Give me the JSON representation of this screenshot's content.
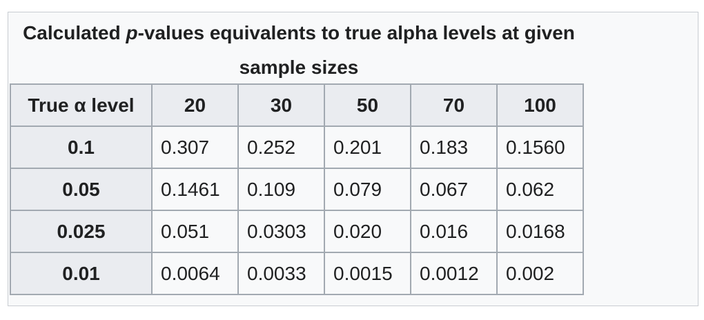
{
  "caption": {
    "part1": "Calculated ",
    "italic": "p",
    "part2": "-values equivalents to true alpha levels at given sample sizes"
  },
  "table": {
    "headers": [
      "True α level",
      "20",
      "30",
      "50",
      "70",
      "100"
    ],
    "rows": [
      {
        "label": "0.1",
        "values": [
          "0.307",
          "0.252",
          "0.201",
          "0.183",
          "0.1560"
        ]
      },
      {
        "label": "0.05",
        "values": [
          "0.1461",
          "0.109",
          "0.079",
          "0.067",
          "0.062"
        ]
      },
      {
        "label": "0.025",
        "values": [
          "0.051",
          "0.0303",
          "0.020",
          "0.016",
          "0.0168"
        ]
      },
      {
        "label": "0.01",
        "values": [
          "0.0064",
          "0.0033",
          "0.0015",
          "0.0012",
          "0.002"
        ]
      }
    ]
  }
}
